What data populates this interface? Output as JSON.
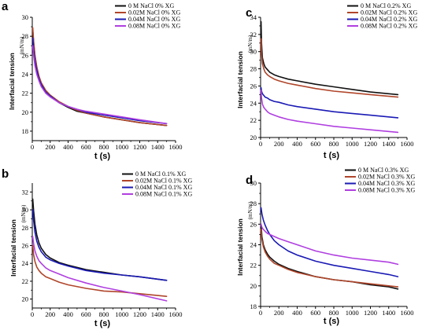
{
  "figure": {
    "panel_count": 4
  },
  "chart_data": [
    {
      "panel": "a",
      "type": "line",
      "xlabel": "t (s)",
      "ylabel": "Interfacial tension",
      "yunit": "(mN/m)",
      "xlim": [
        0,
        1600
      ],
      "ylim": [
        17,
        30
      ],
      "xticks": [
        0,
        200,
        400,
        600,
        800,
        1000,
        1200,
        1400,
        1600
      ],
      "yticks": [
        18,
        20,
        22,
        24,
        26,
        28,
        30
      ],
      "legend_position": "top-right",
      "grid": false,
      "series": [
        {
          "name": "0     M NaCl 0% XG",
          "color": "#111111",
          "x": [
            5,
            15,
            30,
            50,
            75,
            100,
            150,
            200,
            300,
            400,
            500,
            600,
            800,
            1000,
            1200,
            1500
          ],
          "y": [
            28.6,
            27.3,
            25.9,
            24.7,
            23.7,
            23.0,
            22.2,
            21.7,
            21.0,
            20.5,
            20.1,
            19.9,
            19.5,
            19.2,
            18.9,
            18.6
          ]
        },
        {
          "name": "0.02M NaCl 0% XG",
          "color": "#b0452a",
          "x": [
            5,
            15,
            30,
            50,
            75,
            100,
            150,
            200,
            300,
            400,
            500,
            600,
            800,
            1000,
            1200,
            1500
          ],
          "y": [
            28.9,
            27.5,
            26.0,
            24.8,
            23.8,
            23.1,
            22.3,
            21.8,
            21.1,
            20.6,
            20.2,
            19.9,
            19.5,
            19.2,
            18.9,
            18.6
          ]
        },
        {
          "name": "0.04M NaCl 0% XG",
          "color": "#1a1ab5",
          "x": [
            5,
            15,
            30,
            50,
            75,
            100,
            150,
            200,
            300,
            400,
            500,
            600,
            800,
            1000,
            1200,
            1500
          ],
          "y": [
            27.8,
            26.6,
            25.4,
            24.4,
            23.5,
            22.9,
            22.1,
            21.7,
            21.0,
            20.6,
            20.3,
            20.0,
            19.7,
            19.4,
            19.1,
            18.8
          ]
        },
        {
          "name": "0.08M NaCl 0% XG",
          "color": "#b03fe0",
          "x": [
            5,
            15,
            30,
            50,
            75,
            100,
            150,
            200,
            300,
            400,
            500,
            600,
            800,
            1000,
            1200,
            1500
          ],
          "y": [
            27.0,
            26.0,
            24.9,
            24.0,
            23.3,
            22.7,
            22.0,
            21.6,
            21.0,
            20.6,
            20.3,
            20.1,
            19.8,
            19.5,
            19.2,
            18.8
          ]
        }
      ]
    },
    {
      "panel": "b",
      "type": "line",
      "xlabel": "t (s)",
      "ylabel": "Interfacial tension",
      "yunit": "(mN/m)",
      "xlim": [
        0,
        1600
      ],
      "ylim": [
        19,
        33
      ],
      "xticks": [
        0,
        200,
        400,
        600,
        800,
        1000,
        1200,
        1400,
        1600
      ],
      "yticks": [
        20,
        22,
        24,
        26,
        28,
        30,
        32
      ],
      "legend_position": "top-right",
      "grid": false,
      "series": [
        {
          "name": "0     M NaCl 0.1% XG",
          "color": "#111111",
          "x": [
            5,
            15,
            30,
            50,
            75,
            100,
            150,
            200,
            300,
            400,
            600,
            800,
            1000,
            1200,
            1500
          ],
          "y": [
            31.2,
            29.9,
            28.4,
            27.2,
            26.3,
            25.7,
            25.0,
            24.6,
            24.1,
            23.8,
            23.3,
            23.0,
            22.7,
            22.5,
            22.1
          ]
        },
        {
          "name": "0.02M NaCl 0.1% XG",
          "color": "#b0452a",
          "x": [
            5,
            15,
            30,
            50,
            75,
            100,
            150,
            200,
            300,
            400,
            600,
            800,
            1000,
            1200,
            1500
          ],
          "y": [
            26.0,
            25.0,
            24.2,
            23.6,
            23.2,
            22.9,
            22.5,
            22.3,
            21.9,
            21.6,
            21.2,
            20.9,
            20.8,
            20.6,
            20.3
          ]
        },
        {
          "name": "0.04M NaCl 0.1% XG",
          "color": "#1a1ab5",
          "x": [
            5,
            15,
            30,
            50,
            75,
            100,
            150,
            200,
            300,
            400,
            600,
            800,
            1000,
            1200,
            1500
          ],
          "y": [
            30.0,
            28.8,
            27.5,
            26.5,
            25.8,
            25.3,
            24.7,
            24.4,
            24.0,
            23.7,
            23.2,
            22.9,
            22.7,
            22.5,
            22.1
          ]
        },
        {
          "name": "0.08M NaCl 0.1% XG",
          "color": "#b03fe0",
          "x": [
            5,
            15,
            30,
            50,
            75,
            100,
            150,
            200,
            300,
            400,
            600,
            800,
            1000,
            1200,
            1500
          ],
          "y": [
            27.0,
            26.2,
            25.4,
            24.8,
            24.3,
            24.0,
            23.5,
            23.2,
            22.8,
            22.4,
            21.8,
            21.3,
            20.9,
            20.5,
            19.8
          ]
        }
      ]
    },
    {
      "panel": "c",
      "type": "line",
      "xlabel": "t (s)",
      "ylabel": "Interfacial tension",
      "yunit": "(mN/m)",
      "xlim": [
        0,
        1600
      ],
      "ylim": [
        20,
        34
      ],
      "xticks": [
        0,
        200,
        400,
        600,
        800,
        1000,
        1200,
        1400,
        1600
      ],
      "yticks": [
        20,
        22,
        24,
        26,
        28,
        30,
        32,
        34
      ],
      "legend_position": "top-right",
      "grid": false,
      "series": [
        {
          "name": "0     M NaCl 0.2% XG",
          "color": "#111111",
          "x": [
            5,
            10,
            20,
            35,
            50,
            75,
            100,
            150,
            200,
            300,
            400,
            600,
            800,
            1000,
            1200,
            1500
          ],
          "y": [
            33.5,
            31.0,
            29.3,
            28.6,
            28.2,
            27.9,
            27.6,
            27.3,
            27.1,
            26.8,
            26.6,
            26.2,
            25.9,
            25.6,
            25.3,
            25.0
          ]
        },
        {
          "name": "0.02M NaCl 0.2% XG",
          "color": "#b0452a",
          "x": [
            5,
            10,
            20,
            35,
            50,
            75,
            100,
            150,
            200,
            300,
            400,
            600,
            800,
            1000,
            1200,
            1500
          ],
          "y": [
            31.5,
            29.8,
            28.6,
            28.0,
            27.6,
            27.3,
            27.1,
            26.8,
            26.6,
            26.3,
            26.1,
            25.7,
            25.4,
            25.2,
            25.0,
            24.7
          ]
        },
        {
          "name": "0.04M NaCl 0.2% XG",
          "color": "#1a1ab5",
          "x": [
            5,
            10,
            20,
            35,
            50,
            75,
            100,
            150,
            200,
            300,
            400,
            600,
            800,
            1000,
            1200,
            1500
          ],
          "y": [
            25.8,
            25.4,
            25.1,
            24.9,
            24.7,
            24.6,
            24.4,
            24.2,
            24.1,
            23.8,
            23.6,
            23.3,
            23.0,
            22.8,
            22.6,
            22.3
          ]
        },
        {
          "name": "0.08M NaCl 0.2% XG",
          "color": "#b03fe0",
          "x": [
            5,
            10,
            20,
            35,
            50,
            75,
            100,
            150,
            200,
            300,
            400,
            600,
            800,
            1000,
            1200,
            1500
          ],
          "y": [
            25.5,
            24.6,
            23.9,
            23.5,
            23.3,
            23.0,
            22.8,
            22.6,
            22.4,
            22.1,
            21.9,
            21.6,
            21.3,
            21.1,
            20.9,
            20.6
          ]
        }
      ]
    },
    {
      "panel": "d",
      "type": "line",
      "xlabel": "t (s)",
      "ylabel": "Interfacial tension",
      "yunit": "(mN/m)",
      "xlim": [
        0,
        1600
      ],
      "ylim": [
        18,
        30
      ],
      "xticks": [
        0,
        200,
        400,
        600,
        800,
        1000,
        1200,
        1400,
        1600
      ],
      "yticks": [
        18,
        20,
        22,
        24,
        26,
        28,
        30
      ],
      "legend_position": "top-right",
      "grid": false,
      "series": [
        {
          "name": "0     M NaCl 0.3% XG",
          "color": "#111111",
          "x": [
            5,
            15,
            30,
            50,
            75,
            100,
            150,
            200,
            300,
            400,
            600,
            800,
            1000,
            1200,
            1400,
            1500
          ],
          "y": [
            26.0,
            24.8,
            24.0,
            23.5,
            23.1,
            22.8,
            22.4,
            22.1,
            21.7,
            21.4,
            20.9,
            20.6,
            20.4,
            20.1,
            19.9,
            19.7
          ]
        },
        {
          "name": "0.02M NaCl 0.3% XG",
          "color": "#b0452a",
          "x": [
            5,
            15,
            30,
            50,
            75,
            100,
            150,
            200,
            300,
            400,
            600,
            800,
            1000,
            1200,
            1400,
            1500
          ],
          "y": [
            25.5,
            24.5,
            23.8,
            23.3,
            22.9,
            22.6,
            22.2,
            22.0,
            21.6,
            21.3,
            20.9,
            20.6,
            20.4,
            20.2,
            20.0,
            19.9
          ]
        },
        {
          "name": "0.04M NaCl 0.3% XG",
          "color": "#1a1ab5",
          "x": [
            5,
            15,
            30,
            50,
            75,
            100,
            150,
            200,
            300,
            400,
            600,
            800,
            1000,
            1200,
            1400,
            1500
          ],
          "y": [
            27.6,
            27.0,
            26.4,
            25.9,
            25.4,
            25.0,
            24.4,
            24.0,
            23.4,
            23.0,
            22.4,
            22.0,
            21.7,
            21.4,
            21.1,
            20.9
          ]
        },
        {
          "name": "0.08M NaCl 0.3% XG",
          "color": "#b03fe0",
          "x": [
            5,
            15,
            30,
            50,
            75,
            100,
            150,
            200,
            300,
            400,
            600,
            800,
            1000,
            1200,
            1400,
            1500
          ],
          "y": [
            26.0,
            25.7,
            25.5,
            25.3,
            25.1,
            25.0,
            24.8,
            24.6,
            24.3,
            24.0,
            23.4,
            23.0,
            22.7,
            22.5,
            22.3,
            22.1
          ]
        }
      ]
    }
  ]
}
